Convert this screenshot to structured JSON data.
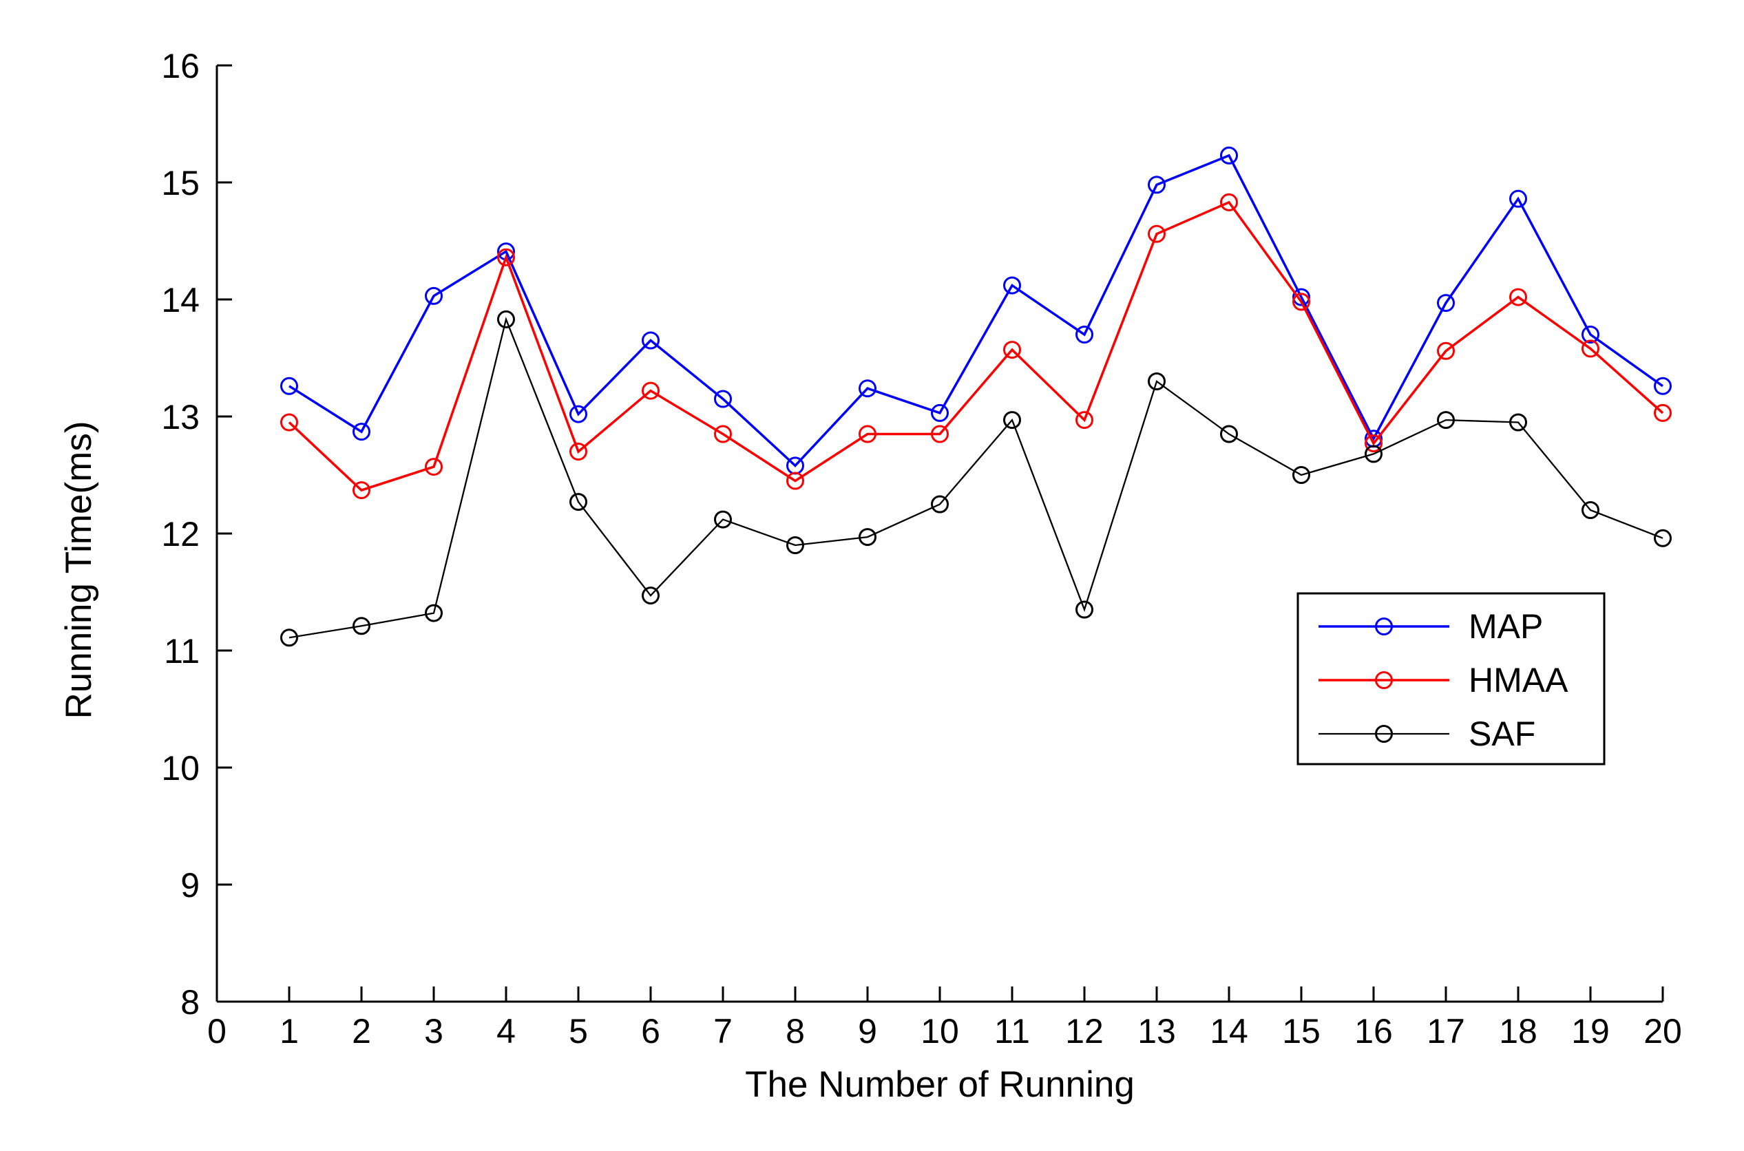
{
  "figure": {
    "background": "#ffffff",
    "axis_color": "#000000"
  },
  "chart_data": {
    "type": "line",
    "title": "",
    "xlabel": "The Number of Running",
    "ylabel": "Running Time(ms)",
    "xlim": [
      0,
      20
    ],
    "ylim": [
      8,
      16
    ],
    "xticks": [
      0,
      1,
      2,
      3,
      4,
      5,
      6,
      7,
      8,
      9,
      10,
      11,
      12,
      13,
      14,
      15,
      16,
      17,
      18,
      19,
      20
    ],
    "yticks": [
      8,
      9,
      10,
      11,
      12,
      13,
      14,
      15,
      16
    ],
    "grid": false,
    "legend": {
      "position": "lower-right-inside",
      "border_color": "#000000",
      "entries": [
        "MAP",
        "HMAA",
        "SAF"
      ]
    },
    "marker": "open-circle",
    "x": [
      1,
      2,
      3,
      4,
      5,
      6,
      7,
      8,
      9,
      10,
      11,
      12,
      13,
      14,
      15,
      16,
      17,
      18,
      19,
      20
    ],
    "series": [
      {
        "name": "MAP",
        "color": "#0000FF",
        "line_width": 3.5,
        "values": [
          13.26,
          12.87,
          14.03,
          14.41,
          13.02,
          13.65,
          13.15,
          12.58,
          13.24,
          13.03,
          14.12,
          13.7,
          14.98,
          15.23,
          14.02,
          12.81,
          13.97,
          14.86,
          13.7,
          13.26
        ]
      },
      {
        "name": "HMAA",
        "color": "#FF0000",
        "line_width": 3.5,
        "values": [
          12.95,
          12.37,
          12.57,
          14.36,
          12.7,
          13.22,
          12.85,
          12.45,
          12.85,
          12.85,
          13.57,
          12.97,
          14.56,
          14.83,
          13.98,
          12.77,
          13.56,
          14.02,
          13.58,
          13.03
        ]
      },
      {
        "name": "SAF",
        "color": "#000000",
        "line_width": 2.3,
        "values": [
          11.11,
          11.21,
          11.32,
          13.83,
          12.27,
          11.47,
          12.12,
          11.9,
          11.97,
          12.25,
          12.97,
          11.35,
          13.3,
          12.85,
          12.5,
          12.68,
          12.97,
          12.95,
          12.2,
          11.96
        ]
      }
    ]
  }
}
